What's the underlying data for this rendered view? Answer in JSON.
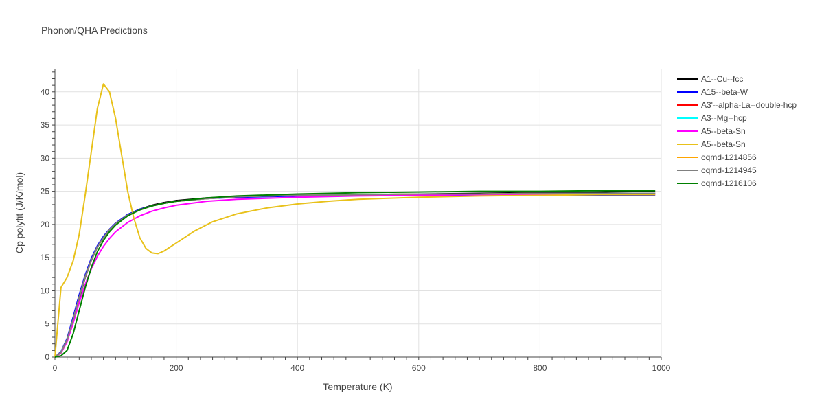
{
  "title": "Phonon/QHA Predictions",
  "chart_data": {
    "type": "line",
    "title": "Phonon/QHA Predictions",
    "xlabel": "Temperature (K)",
    "ylabel": "Cp polyfit (J/K/mol)",
    "xlim": [
      0,
      1000
    ],
    "ylim": [
      0,
      43.5
    ],
    "x_ticks": [
      0,
      200,
      400,
      600,
      800,
      1000
    ],
    "y_ticks": [
      0,
      5,
      10,
      15,
      20,
      25,
      30,
      35,
      40
    ],
    "grid": true,
    "legend_position": "right",
    "series": [
      {
        "name": "A1--Cu--fcc",
        "color": "#000000",
        "x": [
          0,
          10,
          20,
          30,
          40,
          50,
          60,
          70,
          80,
          90,
          100,
          120,
          140,
          160,
          180,
          200,
          250,
          300,
          400,
          500,
          600,
          700,
          800,
          900,
          990
        ],
        "y": [
          0,
          0.7,
          2.5,
          5.4,
          8.8,
          12.0,
          14.6,
          16.6,
          18.0,
          19.2,
          20.1,
          21.5,
          22.3,
          22.9,
          23.3,
          23.6,
          24.0,
          24.2,
          24.4,
          24.5,
          24.6,
          24.7,
          24.8,
          24.9,
          25.0
        ]
      },
      {
        "name": "A15--beta-W",
        "color": "#0000ff",
        "x": [
          0,
          10,
          20,
          30,
          40,
          50,
          60,
          70,
          80,
          90,
          100,
          120,
          140,
          160,
          180,
          200,
          250,
          300,
          400,
          500,
          600,
          700,
          800,
          900,
          990
        ],
        "y": [
          0,
          0.8,
          2.8,
          6.0,
          9.4,
          12.4,
          14.9,
          16.8,
          18.2,
          19.3,
          20.2,
          21.5,
          22.3,
          22.8,
          23.2,
          23.5,
          23.9,
          24.1,
          24.3,
          24.4,
          24.4,
          24.4,
          24.4,
          24.4,
          24.4
        ]
      },
      {
        "name": "A3'--alpha-La--double-hcp",
        "color": "#ff0000",
        "x": [
          0,
          10,
          20,
          30,
          40,
          50,
          60,
          70,
          80,
          90,
          100,
          120,
          140,
          160,
          180,
          200,
          250,
          300,
          400,
          500,
          600,
          700,
          800,
          900,
          990
        ],
        "y": [
          0,
          0.7,
          2.6,
          5.6,
          9.0,
          12.1,
          14.6,
          16.6,
          18.0,
          19.2,
          20.1,
          21.4,
          22.2,
          22.8,
          23.2,
          23.5,
          23.9,
          24.2,
          24.4,
          24.5,
          24.6,
          24.6,
          24.7,
          24.7,
          24.7
        ]
      },
      {
        "name": "A3--Mg--hcp",
        "color": "#00ffff",
        "x": [
          0,
          10,
          20,
          30,
          40,
          50,
          60,
          70,
          80,
          90,
          100,
          120,
          140,
          160,
          180,
          200,
          250,
          300,
          400,
          500,
          600,
          700,
          800,
          900,
          990
        ],
        "y": [
          0,
          0.7,
          2.6,
          5.6,
          9.0,
          12.1,
          14.6,
          16.6,
          18.0,
          19.2,
          20.1,
          21.4,
          22.2,
          22.8,
          23.2,
          23.5,
          23.9,
          24.2,
          24.4,
          24.5,
          24.6,
          24.6,
          24.7,
          24.7,
          24.7
        ]
      },
      {
        "name": "A5--beta-Sn",
        "color": "#ff00ff",
        "x": [
          0,
          10,
          20,
          30,
          40,
          50,
          60,
          70,
          80,
          90,
          100,
          120,
          140,
          160,
          180,
          200,
          250,
          300,
          400,
          500,
          600,
          700,
          800,
          900,
          990
        ],
        "y": [
          0,
          0.6,
          2.3,
          5.1,
          8.2,
          11.0,
          13.3,
          15.2,
          16.7,
          17.9,
          18.9,
          20.3,
          21.3,
          22.0,
          22.5,
          22.9,
          23.5,
          23.8,
          24.1,
          24.3,
          24.4,
          24.5,
          24.5,
          24.6,
          24.6
        ]
      },
      {
        "name": "A5--beta-Sn",
        "color": "#e8c11a",
        "x": [
          0,
          10,
          20,
          30,
          40,
          50,
          60,
          70,
          80,
          90,
          100,
          110,
          120,
          130,
          140,
          150,
          160,
          170,
          180,
          200,
          230,
          260,
          300,
          350,
          400,
          450,
          500,
          600,
          700,
          800,
          900,
          990
        ],
        "y": [
          0,
          10.5,
          12.0,
          14.5,
          18.5,
          24.5,
          31.0,
          37.5,
          41.2,
          40.0,
          36.0,
          30.5,
          25.0,
          21.0,
          18.0,
          16.4,
          15.7,
          15.6,
          16.0,
          17.2,
          19.0,
          20.4,
          21.6,
          22.5,
          23.1,
          23.5,
          23.8,
          24.1,
          24.3,
          24.4,
          24.5,
          24.5
        ]
      },
      {
        "name": "oqmd-1214856",
        "color": "#ffa500",
        "x": [
          0,
          10,
          20,
          30,
          40,
          50,
          60,
          70,
          80,
          90,
          100,
          120,
          140,
          160,
          180,
          200,
          250,
          300,
          400,
          500,
          600,
          700,
          800,
          900,
          990
        ],
        "y": [
          0,
          0.7,
          2.6,
          5.6,
          9.0,
          12.1,
          14.6,
          16.6,
          18.0,
          19.2,
          20.1,
          21.4,
          22.2,
          22.8,
          23.2,
          23.5,
          23.9,
          24.2,
          24.4,
          24.5,
          24.6,
          24.6,
          24.7,
          24.7,
          24.7
        ]
      },
      {
        "name": "oqmd-1214945",
        "color": "#808080",
        "x": [
          0,
          10,
          20,
          30,
          40,
          50,
          60,
          70,
          80,
          90,
          100,
          120,
          140,
          160,
          180,
          200,
          250,
          300,
          400,
          500,
          600,
          700,
          800,
          900,
          990
        ],
        "y": [
          0,
          0.7,
          2.6,
          5.6,
          9.0,
          12.1,
          14.6,
          16.6,
          18.0,
          19.2,
          20.1,
          21.4,
          22.2,
          22.8,
          23.2,
          23.5,
          23.9,
          24.2,
          24.4,
          24.5,
          24.6,
          24.6,
          24.7,
          24.7,
          24.7
        ]
      },
      {
        "name": "oqmd-1216106",
        "color": "#008000",
        "x": [
          0,
          10,
          20,
          30,
          40,
          50,
          60,
          70,
          80,
          90,
          100,
          120,
          140,
          160,
          180,
          200,
          250,
          300,
          400,
          500,
          600,
          700,
          800,
          900,
          990
        ],
        "y": [
          0,
          0.2,
          1.0,
          3.5,
          7.0,
          10.5,
          13.5,
          15.9,
          17.6,
          18.9,
          19.9,
          21.3,
          22.2,
          22.8,
          23.2,
          23.5,
          24.0,
          24.3,
          24.6,
          24.8,
          24.9,
          25.0,
          25.0,
          25.1,
          25.1
        ]
      }
    ]
  }
}
